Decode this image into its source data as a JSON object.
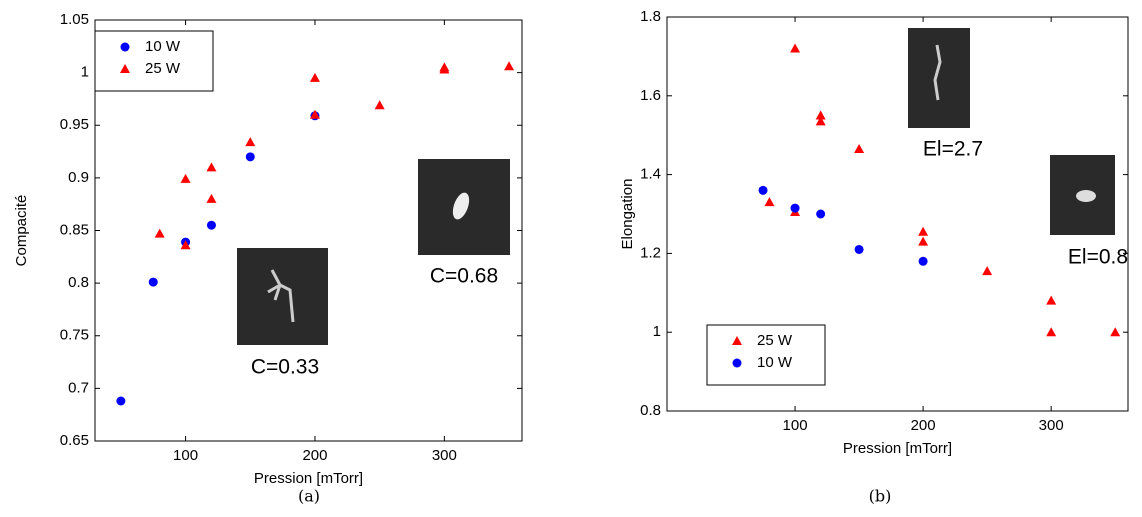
{
  "chart_data": [
    {
      "type": "scatter",
      "caption": "(a)",
      "xlabel": "Pression [mTorr]",
      "ylabel": "Compacité",
      "xlim": [
        30,
        360
      ],
      "ylim": [
        0.65,
        1.05
      ],
      "xticks": [
        100,
        200,
        300
      ],
      "yticks": [
        0.65,
        0.7,
        0.75,
        0.8,
        0.85,
        0.9,
        0.95,
        1,
        1.05
      ],
      "legend": "upper left",
      "series": [
        {
          "name": "10 W",
          "color": "#0000ff",
          "marker": "circle",
          "x": [
            50,
            75,
            100,
            120,
            150,
            200
          ],
          "values": [
            0.688,
            0.801,
            0.839,
            0.855,
            0.92,
            0.959
          ]
        },
        {
          "name": "25 W",
          "color": "#ff0000",
          "marker": "triangle",
          "x": [
            80,
            100,
            100,
            120,
            120,
            150,
            200,
            200,
            250,
            300,
            300,
            350
          ],
          "values": [
            0.847,
            0.899,
            0.836,
            0.91,
            0.88,
            0.934,
            0.995,
            0.96,
            0.969,
            1.005,
            1.003,
            1.006
          ]
        }
      ],
      "annotations": [
        "C=0.33",
        "C=0.68"
      ]
    },
    {
      "type": "scatter",
      "caption": "(b)",
      "xlabel": "Pression [mTorr]",
      "ylabel": "Elongation",
      "xlim": [
        0,
        360
      ],
      "ylim": [
        0.8,
        1.8
      ],
      "xticks": [
        100,
        200,
        300
      ],
      "yticks": [
        0.8,
        1,
        1.2,
        1.4,
        1.6,
        1.8
      ],
      "legend": "lower left",
      "series": [
        {
          "name": "25 W",
          "color": "#ff0000",
          "marker": "triangle",
          "x": [
            80,
            100,
            100,
            120,
            120,
            150,
            200,
            200,
            250,
            300,
            300,
            350
          ],
          "values": [
            1.33,
            1.72,
            1.305,
            1.55,
            1.535,
            1.465,
            1.255,
            1.23,
            1.155,
            1.08,
            1.0,
            1.0
          ]
        },
        {
          "name": "10 W",
          "color": "#0000ff",
          "marker": "circle",
          "x": [
            75,
            100,
            120,
            150,
            200
          ],
          "values": [
            1.36,
            1.315,
            1.3,
            1.21,
            1.18
          ]
        }
      ],
      "annotations": [
        "El=2.7",
        "El=0.8"
      ]
    }
  ]
}
